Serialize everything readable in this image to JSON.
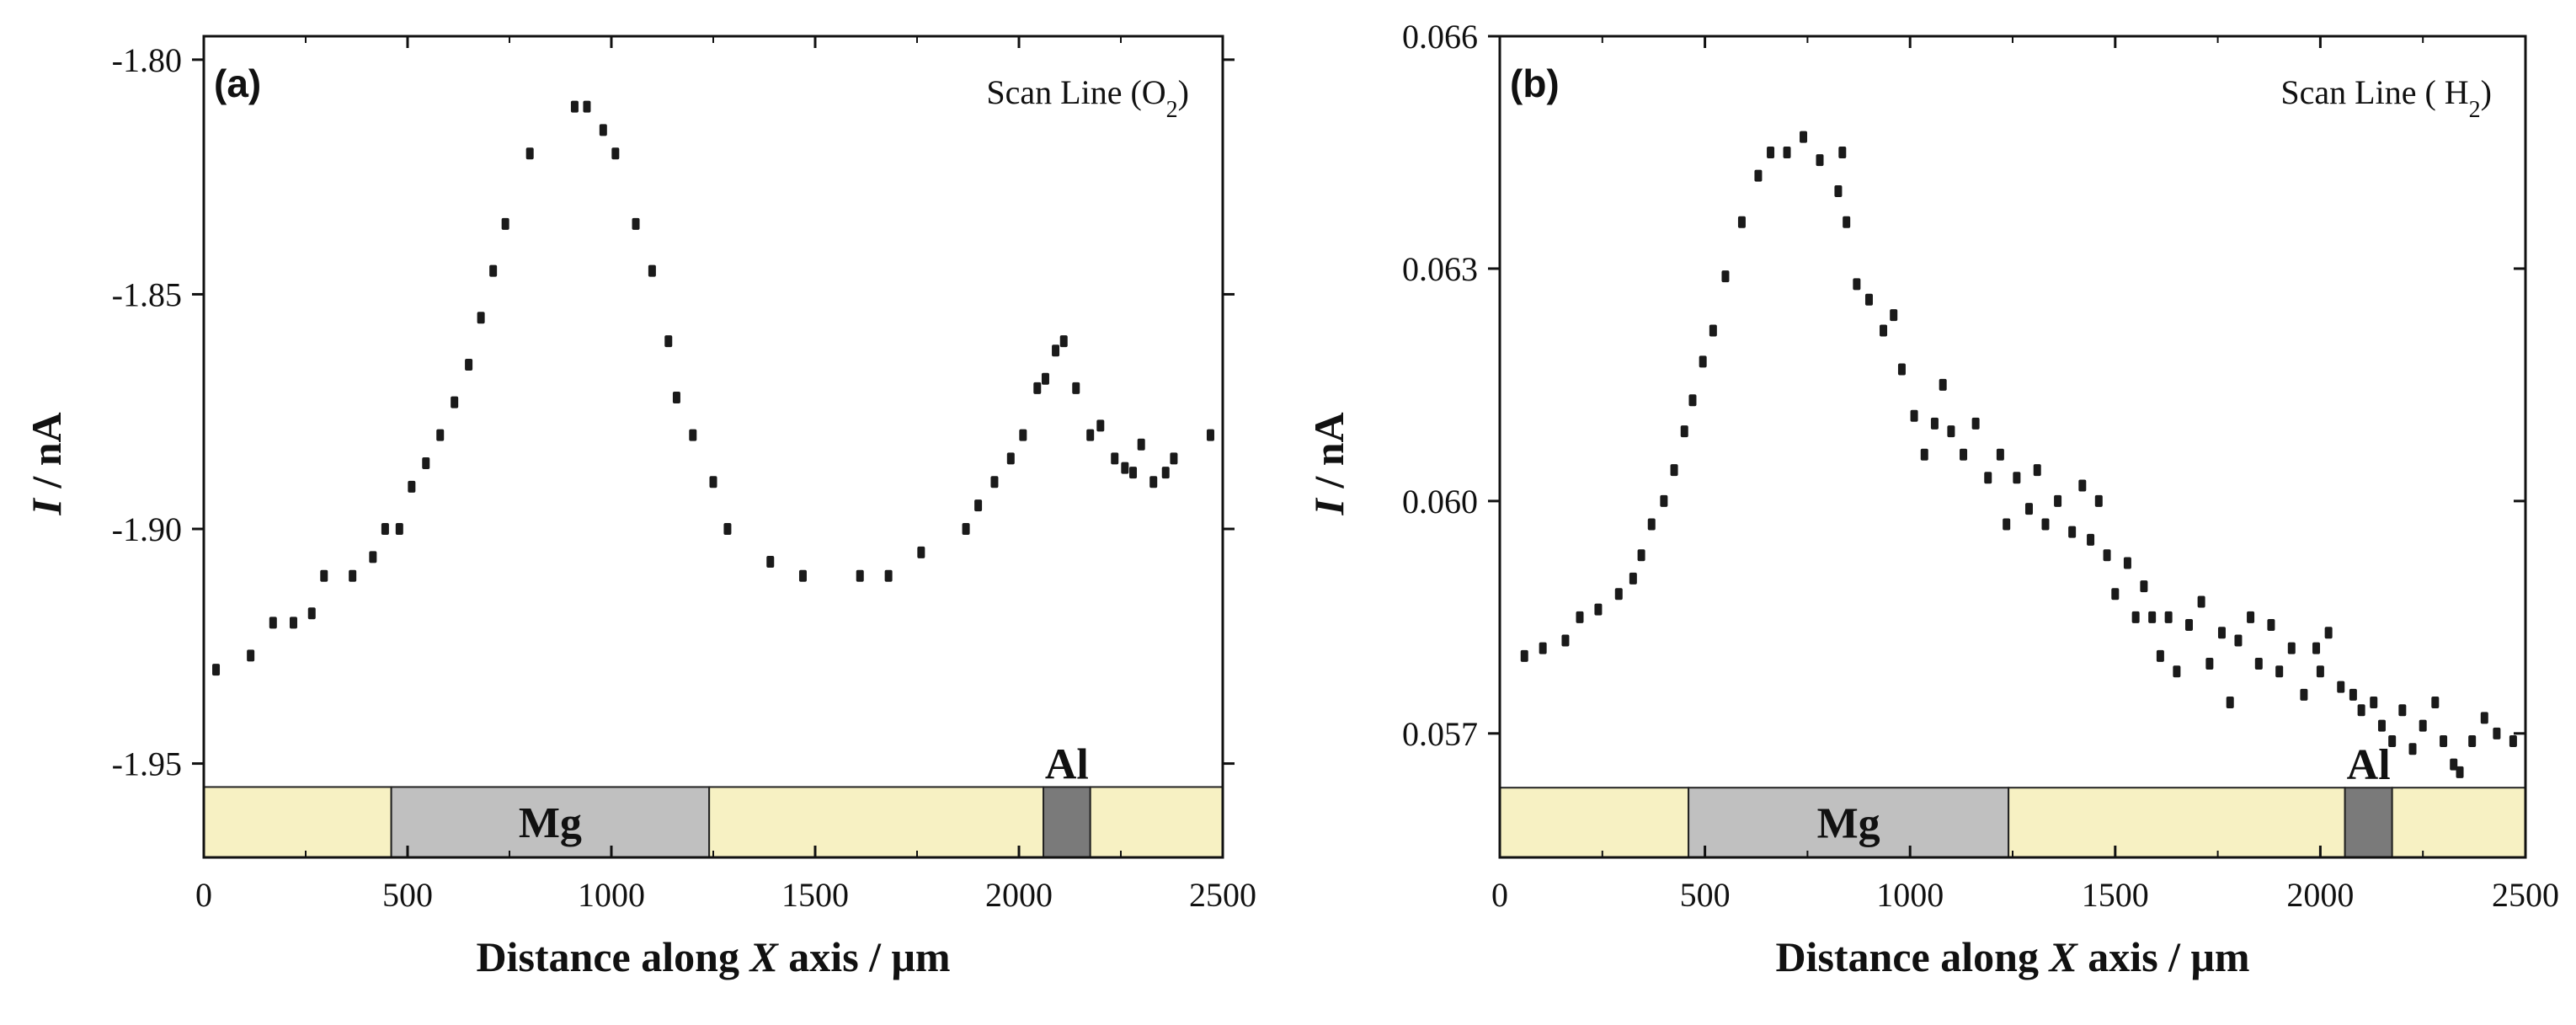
{
  "colors": {
    "background": "#ffffff",
    "axis": "#111111",
    "marker": "#1a1a1a",
    "substrate": "#f7f1c3",
    "mg": "#c0c0c0",
    "al": "#7a7a7a"
  },
  "chart_data": [
    {
      "type": "scatter",
      "panel_label": "(a)",
      "annotation": {
        "prefix": "Scan Line (O",
        "subscript": "2",
        "suffix": ")"
      },
      "xlabel": {
        "prefix": "Distance along ",
        "italic": "X",
        "suffix": " axis / μm"
      },
      "ylabel": {
        "italic": "I",
        "suffix": " / nA"
      },
      "xlim": [
        0,
        2500
      ],
      "ylim": [
        -1.97,
        -1.795
      ],
      "xticks": [
        0,
        500,
        1000,
        1500,
        2000,
        2500
      ],
      "xtick_labels": [
        "0",
        "500",
        "1000",
        "1500",
        "2000",
        "2500"
      ],
      "yticks": [
        -1.8,
        -1.85,
        -1.9,
        -1.95
      ],
      "ytick_labels": [
        "-1.80",
        "-1.85",
        "-1.90",
        "-1.95"
      ],
      "regions": [
        {
          "name": "substrate",
          "start": 0,
          "end": 460,
          "label": ""
        },
        {
          "name": "mg",
          "start": 460,
          "end": 1240,
          "label": "Mg"
        },
        {
          "name": "substrate",
          "start": 1240,
          "end": 2060,
          "label": ""
        },
        {
          "name": "al",
          "start": 2060,
          "end": 2175,
          "label": "Al"
        },
        {
          "name": "substrate",
          "start": 2175,
          "end": 2500,
          "label": ""
        }
      ],
      "region_strip_ylim": [
        -1.97,
        -1.955
      ],
      "series": [
        {
          "name": "O2 scan line",
          "x": [
            30,
            115,
            170,
            220,
            265,
            295,
            365,
            415,
            445,
            480,
            510,
            545,
            580,
            615,
            650,
            680,
            710,
            740,
            800,
            910,
            940,
            980,
            1010,
            1060,
            1100,
            1140,
            1160,
            1200,
            1250,
            1285,
            1390,
            1470,
            1610,
            1680,
            1760,
            1870,
            1900,
            1940,
            1980,
            2010,
            2045,
            2065,
            2090,
            2110,
            2140,
            2175,
            2200,
            2235,
            2260,
            2280,
            2300,
            2330,
            2360,
            2380,
            2470
          ],
          "y": [
            -1.93,
            -1.927,
            -1.92,
            -1.92,
            -1.918,
            -1.91,
            -1.91,
            -1.906,
            -1.9,
            -1.9,
            -1.891,
            -1.886,
            -1.88,
            -1.873,
            -1.865,
            -1.855,
            -1.845,
            -1.835,
            -1.82,
            -1.81,
            -1.81,
            -1.815,
            -1.82,
            -1.835,
            -1.845,
            -1.86,
            -1.872,
            -1.88,
            -1.89,
            -1.9,
            -1.907,
            -1.91,
            -1.91,
            -1.91,
            -1.905,
            -1.9,
            -1.895,
            -1.89,
            -1.885,
            -1.88,
            -1.87,
            -1.868,
            -1.862,
            -1.86,
            -1.87,
            -1.88,
            -1.878,
            -1.885,
            -1.887,
            -1.888,
            -1.882,
            -1.89,
            -1.888,
            -1.885,
            -1.88
          ]
        }
      ]
    },
    {
      "type": "scatter",
      "panel_label": "(b)",
      "annotation": {
        "prefix": "Scan Line ( H",
        "subscript": "2",
        "suffix": ")"
      },
      "xlabel": {
        "prefix": "Distance along ",
        "italic": "X",
        "suffix": " axis / μm"
      },
      "ylabel": {
        "italic": "I",
        "suffix": " / nA"
      },
      "xlim": [
        0,
        2500
      ],
      "ylim": [
        0.0554,
        0.066
      ],
      "xticks": [
        0,
        500,
        1000,
        1500,
        2000,
        2500
      ],
      "xtick_labels": [
        "0",
        "500",
        "1000",
        "1500",
        "2000",
        "2500"
      ],
      "yticks": [
        0.066,
        0.063,
        0.06,
        0.057
      ],
      "ytick_labels": [
        "0.066",
        "0.063",
        "0.060",
        "0.057"
      ],
      "regions": [
        {
          "name": "substrate",
          "start": 0,
          "end": 460,
          "label": ""
        },
        {
          "name": "mg",
          "start": 460,
          "end": 1240,
          "label": "Mg"
        },
        {
          "name": "substrate",
          "start": 1240,
          "end": 2060,
          "label": ""
        },
        {
          "name": "al",
          "start": 2060,
          "end": 2175,
          "label": "Al"
        },
        {
          "name": "substrate",
          "start": 2175,
          "end": 2500,
          "label": ""
        }
      ],
      "region_strip_ylim": [
        0.0554,
        0.0563
      ],
      "series": [
        {
          "name": "H2 scan line",
          "x": [
            60,
            105,
            160,
            195,
            240,
            290,
            325,
            345,
            370,
            400,
            425,
            450,
            470,
            495,
            520,
            550,
            590,
            630,
            660,
            700,
            740,
            780,
            825,
            835,
            845,
            870,
            900,
            935,
            960,
            980,
            1010,
            1035,
            1060,
            1080,
            1100,
            1130,
            1160,
            1190,
            1220,
            1235,
            1260,
            1290,
            1310,
            1330,
            1360,
            1395,
            1420,
            1440,
            1460,
            1480,
            1500,
            1530,
            1550,
            1570,
            1590,
            1610,
            1630,
            1650,
            1680,
            1710,
            1730,
            1760,
            1780,
            1800,
            1830,
            1850,
            1880,
            1900,
            1930,
            1960,
            1990,
            2000,
            2020,
            2050,
            2080,
            2100,
            2130,
            2150,
            2175,
            2200,
            2225,
            2250,
            2280,
            2300,
            2325,
            2340,
            2370,
            2400,
            2430,
            2470
          ],
          "y": [
            0.058,
            0.0581,
            0.0582,
            0.0585,
            0.0586,
            0.0588,
            0.059,
            0.0593,
            0.0597,
            0.06,
            0.0604,
            0.0609,
            0.0613,
            0.0618,
            0.0622,
            0.0629,
            0.0636,
            0.0642,
            0.0645,
            0.0645,
            0.0647,
            0.0644,
            0.064,
            0.0645,
            0.0636,
            0.0628,
            0.0626,
            0.0622,
            0.0624,
            0.0617,
            0.0611,
            0.0606,
            0.061,
            0.0615,
            0.0609,
            0.0606,
            0.061,
            0.0603,
            0.0606,
            0.0597,
            0.0603,
            0.0599,
            0.0604,
            0.0597,
            0.06,
            0.0596,
            0.0602,
            0.0595,
            0.06,
            0.0593,
            0.0588,
            0.0592,
            0.0585,
            0.0589,
            0.0585,
            0.058,
            0.0585,
            0.0578,
            0.0584,
            0.0587,
            0.0579,
            0.0583,
            0.0574,
            0.0582,
            0.0585,
            0.0579,
            0.0584,
            0.0578,
            0.0581,
            0.0575,
            0.0581,
            0.0578,
            0.0583,
            0.0576,
            0.0575,
            0.0573,
            0.0574,
            0.0571,
            0.0569,
            0.0573,
            0.0568,
            0.0571,
            0.0574,
            0.0569,
            0.0566,
            0.0565,
            0.0569,
            0.0572,
            0.057,
            0.0569
          ]
        }
      ]
    }
  ]
}
